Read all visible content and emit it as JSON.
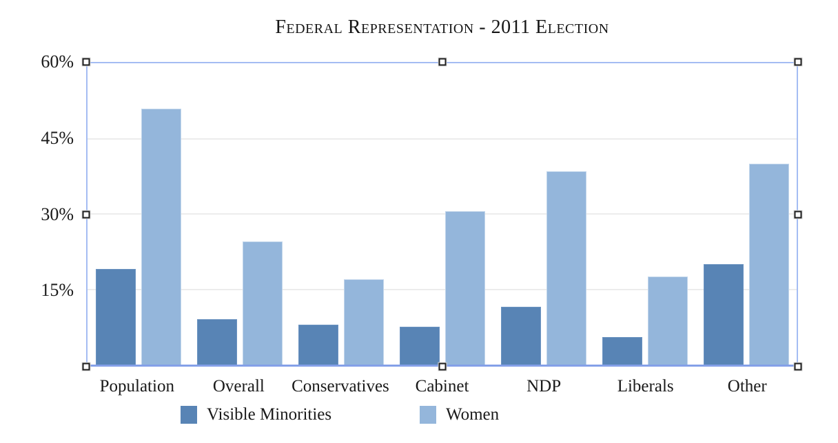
{
  "chart_data": {
    "type": "bar",
    "title": "Federal Representation - 2011 Election",
    "categories": [
      "Population",
      "Overall",
      "Conservatives",
      "Cabinet",
      "NDP",
      "Liberals",
      "Other"
    ],
    "series": [
      {
        "name": "Visible Minorities",
        "color": "#5884b5",
        "values": [
          19,
          9,
          8,
          7.5,
          11.5,
          5.5,
          20
        ]
      },
      {
        "name": "Women",
        "color": "#94b6db",
        "values": [
          51,
          24.5,
          17,
          30.5,
          38.5,
          17.5,
          40
        ]
      }
    ],
    "xlabel": "",
    "ylabel": "",
    "ylim": [
      0,
      60
    ],
    "ytick_values": [
      15,
      30,
      45,
      60
    ],
    "ytick_labels": [
      "15%",
      "30%",
      "45%",
      "60%"
    ],
    "grid": true,
    "legend_position": "bottom"
  },
  "selection": {
    "selected": true,
    "border_color": "#a4bcf3",
    "handles": [
      "top-left",
      "top-center",
      "top-right",
      "middle-left",
      "middle-right",
      "bottom-left",
      "bottom-center",
      "bottom-right"
    ]
  }
}
